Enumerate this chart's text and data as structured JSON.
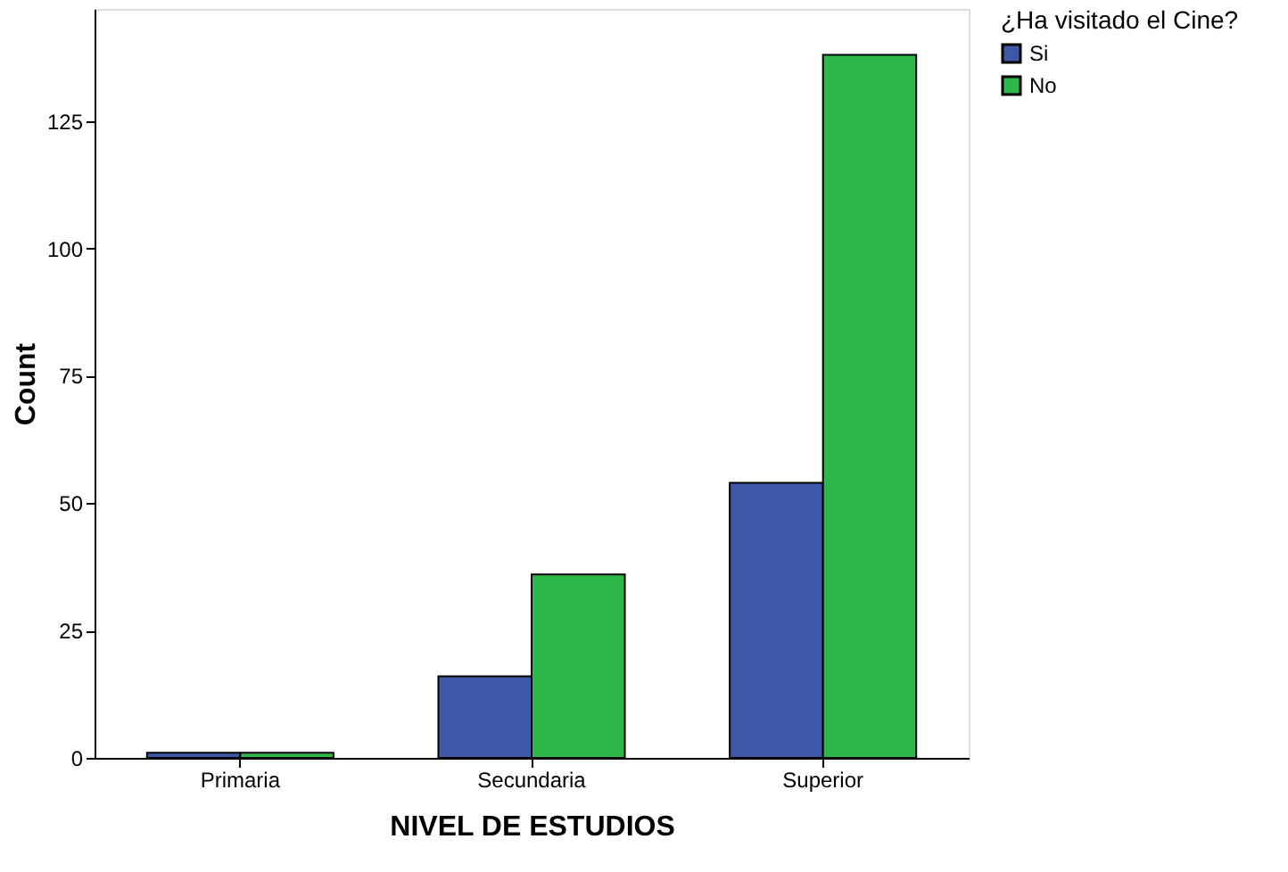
{
  "chart_data": {
    "type": "bar",
    "xlabel": "NIVEL DE ESTUDIOS",
    "ylabel": "Count",
    "legend_title": "¿Ha visitado el Cine?",
    "categories": [
      "Primaria",
      "Secundaria",
      "Superior"
    ],
    "series": [
      {
        "name": "Si",
        "color": "#3d58a8",
        "values": [
          1,
          16,
          54
        ]
      },
      {
        "name": "No",
        "color": "#2db84a",
        "values": [
          1,
          36,
          138
        ]
      }
    ],
    "ylim": [
      0,
      147
    ],
    "yticks": [
      0,
      25,
      50,
      75,
      100,
      125
    ],
    "grid": false,
    "legend": "top right"
  }
}
